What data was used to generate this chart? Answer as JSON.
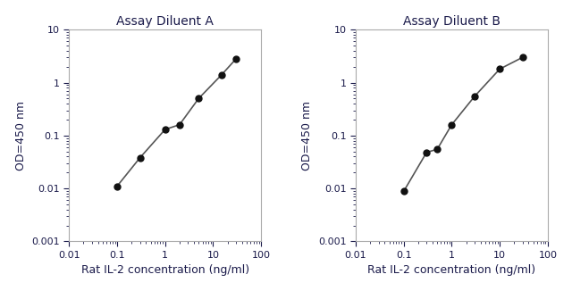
{
  "plot_A": {
    "title": "Assay Diluent A",
    "x": [
      0.1,
      0.3,
      1.0,
      2.0,
      5.0,
      15.0,
      30.0
    ],
    "y": [
      0.011,
      0.038,
      0.13,
      0.16,
      0.5,
      1.4,
      2.8
    ]
  },
  "plot_B": {
    "title": "Assay Diluent B",
    "x": [
      0.1,
      0.3,
      0.5,
      1.0,
      3.0,
      10.0,
      30.0
    ],
    "y": [
      0.0088,
      0.048,
      0.055,
      0.16,
      0.55,
      1.8,
      3.0
    ]
  },
  "xlabel": "Rat IL-2 concentration (ng/ml)",
  "ylabel": "OD=450 nm",
  "xlim": [
    0.03,
    100
  ],
  "ylim": [
    0.001,
    10
  ],
  "line_color": "#555555",
  "marker_color": "#111111",
  "title_color": "#1a1a4a",
  "axis_label_color": "#1a1a4a",
  "tick_color": "#1a1a4a",
  "background_color": "#ffffff",
  "spine_color": "#aaaaaa",
  "title_fontsize": 10,
  "label_fontsize": 9,
  "tick_fontsize": 8
}
